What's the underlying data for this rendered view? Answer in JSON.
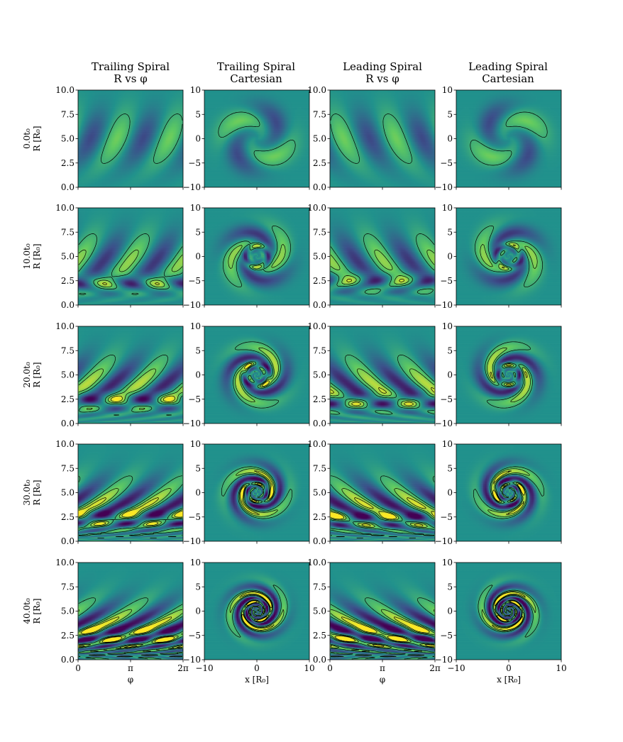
{
  "chart_data": {
    "type": "heatmap",
    "layout": {
      "rows": 5,
      "cols": 4
    },
    "columns": [
      {
        "title_line1": "Trailing Spiral",
        "title_line2": "R vs φ",
        "kind": "polar",
        "handedness": "trailing"
      },
      {
        "title_line1": "Trailing Spiral",
        "title_line2": "Cartesian",
        "kind": "cartesian",
        "handedness": "trailing"
      },
      {
        "title_line1": "Leading Spiral",
        "title_line2": "R vs φ",
        "kind": "polar",
        "handedness": "leading"
      },
      {
        "title_line1": "Leading Spiral",
        "title_line2": "Cartesian",
        "kind": "cartesian",
        "handedness": "leading"
      }
    ],
    "rows": [
      {
        "label": "0.0t₀",
        "time": 0
      },
      {
        "label": "10.0t₀",
        "time": 10
      },
      {
        "label": "20.0t₀",
        "time": 20
      },
      {
        "label": "30.0t₀",
        "time": 30
      },
      {
        "label": "40.0t₀",
        "time": 40
      }
    ],
    "ylabel_polar": "R [R₀]",
    "xlabel_polar": "φ",
    "xlabel_cartesian": "x [R₀]",
    "polar_axes": {
      "xlim": [
        0,
        6.2832
      ],
      "ylim": [
        0,
        10
      ],
      "xticks": [
        "0",
        "π",
        "2π"
      ],
      "yticks": [
        "0.0",
        "2.5",
        "5.0",
        "7.5",
        "10.0"
      ]
    },
    "cartesian_axes": {
      "xlim": [
        -10,
        10
      ],
      "ylim": [
        -10,
        10
      ],
      "xticks": [
        "−10",
        "0",
        "10"
      ],
      "yticks": [
        "−10",
        "−5",
        "0",
        "5",
        "10"
      ]
    },
    "colormap": "viridis",
    "colormap_stops": [
      "#440154",
      "#3b528b",
      "#21918c",
      "#5ec962",
      "#fde725"
    ],
    "contour_color": "#000000",
    "arms": 2
  }
}
